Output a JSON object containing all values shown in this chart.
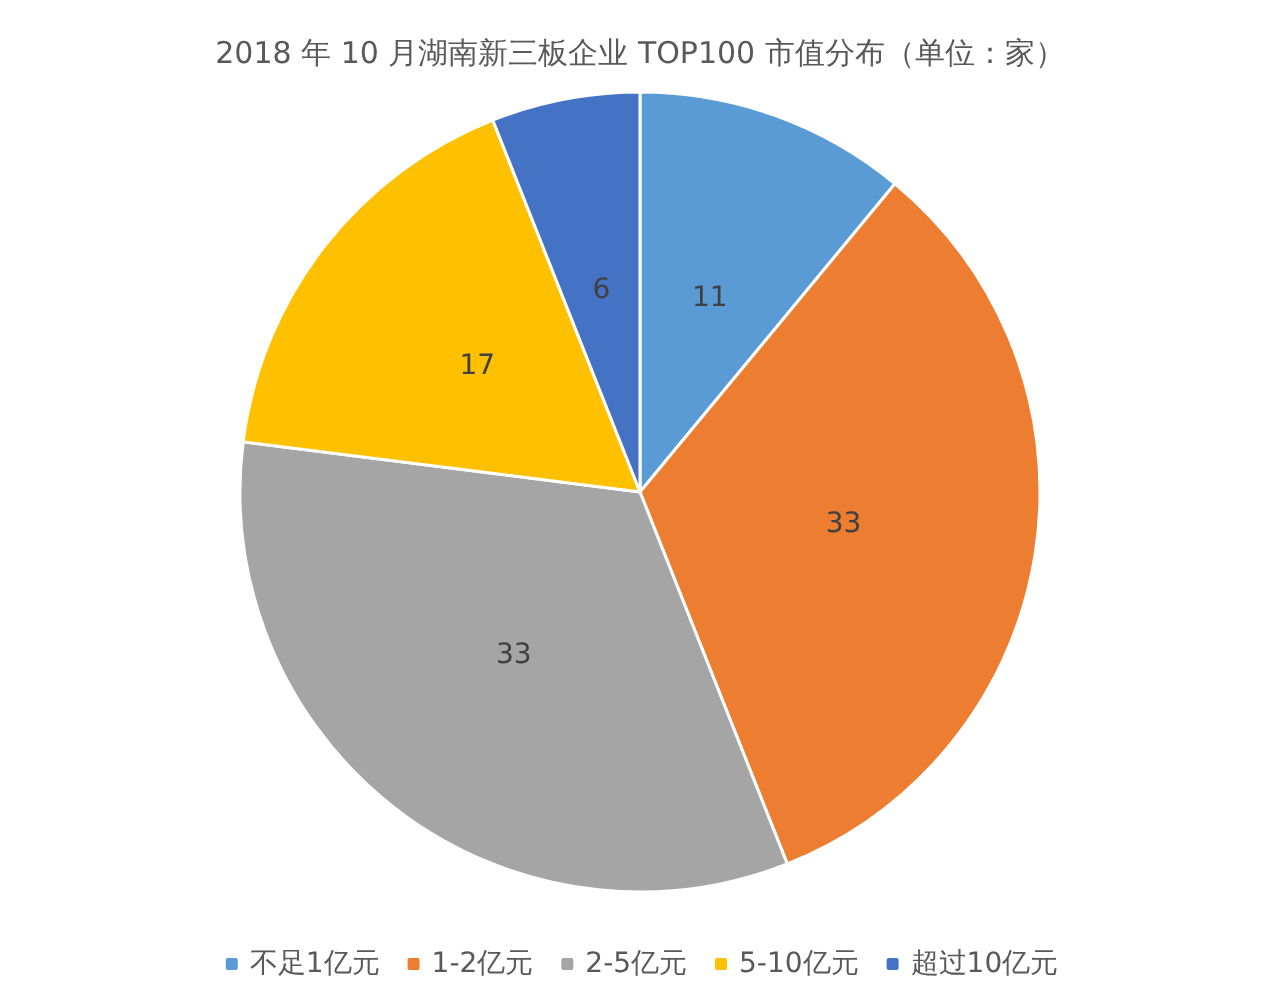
{
  "chart_data": {
    "type": "pie",
    "title": "2018 年 10 月湖南新三板企业 TOP100 市值分布（单位：家）",
    "categories": [
      "不足1亿元",
      "1-2亿元",
      "2-5亿元",
      "5-10亿元",
      "超过10亿元"
    ],
    "values": [
      11,
      33,
      33,
      17,
      6
    ],
    "colors": [
      "#5b9bd5",
      "#ed7d31",
      "#a5a5a5",
      "#ffc000",
      "#4472c4"
    ],
    "data_labels": true,
    "legend": "bottom"
  }
}
